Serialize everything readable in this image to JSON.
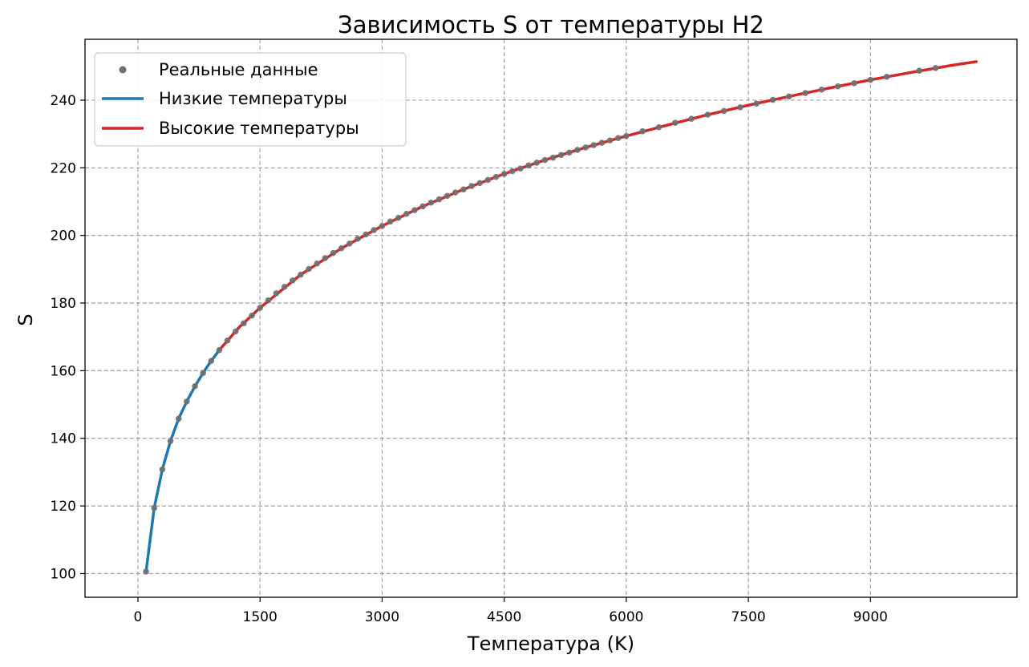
{
  "chart_data": {
    "type": "line",
    "title": "Зависимость S от температуры H2",
    "xlabel": "Температура (K)",
    "ylabel": "S",
    "xlim": [
      -650,
      10800
    ],
    "ylim": [
      93,
      258
    ],
    "xticks": [
      0,
      1500,
      3000,
      4500,
      6000,
      7500,
      9000
    ],
    "yticks": [
      100,
      120,
      140,
      160,
      180,
      200,
      220,
      240
    ],
    "grid": true,
    "legend_position": "upper left",
    "legend": [
      {
        "label": "Реальные данные",
        "kind": "marker",
        "color": "#707070"
      },
      {
        "label": "Низкие температуры",
        "kind": "line",
        "color": "#1f77b4"
      },
      {
        "label": "Высокие температуры",
        "kind": "line",
        "color": "#d62728"
      }
    ],
    "series": [
      {
        "name": "Реальные данные",
        "kind": "scatter",
        "color": "#707070",
        "x": [
          100,
          200,
          300,
          400,
          500,
          600,
          700,
          800,
          900,
          1000,
          1100,
          1200,
          1300,
          1400,
          1500,
          1600,
          1700,
          1800,
          1900,
          2000,
          2100,
          2200,
          2300,
          2400,
          2500,
          2600,
          2700,
          2800,
          2900,
          3000,
          3100,
          3200,
          3300,
          3400,
          3500,
          3600,
          3700,
          3800,
          3900,
          4000,
          4100,
          4200,
          4300,
          4400,
          4500,
          4600,
          4700,
          4800,
          4900,
          5000,
          5100,
          5200,
          5300,
          5400,
          5500,
          5600,
          5700,
          5800,
          5900,
          6000,
          6200,
          6400,
          6600,
          6800,
          7000,
          7200,
          7400,
          7600,
          7800,
          8000,
          8200,
          8400,
          8600,
          8800,
          9000,
          9200,
          9600,
          9800
        ],
        "y": [
          100.6,
          119.4,
          130.8,
          139.2,
          145.8,
          150.9,
          155.4,
          159.3,
          162.9,
          166.1,
          168.9,
          171.6,
          174.0,
          176.3,
          178.6,
          180.8,
          182.9,
          184.8,
          186.7,
          188.4,
          190.1,
          191.7,
          193.3,
          194.8,
          196.2,
          197.6,
          199.0,
          200.3,
          201.6,
          202.8,
          204.1,
          205.2,
          206.4,
          207.5,
          208.6,
          209.7,
          210.7,
          211.7,
          212.7,
          213.6,
          214.6,
          215.5,
          216.4,
          217.3,
          218.2,
          219.0,
          219.8,
          220.7,
          221.5,
          222.3,
          223.0,
          223.8,
          224.5,
          225.3,
          226.0,
          226.7,
          227.4,
          228.1,
          228.8,
          229.4,
          230.8,
          232.0,
          233.3,
          234.5,
          235.7,
          236.8,
          237.9,
          239.0,
          240.1,
          241.1,
          242.1,
          243.1,
          244.1,
          245.0,
          246.0,
          246.9,
          248.7,
          249.5
        ]
      },
      {
        "name": "Низкие температуры",
        "kind": "line",
        "color": "#1f77b4",
        "x": [
          100,
          200,
          300,
          400,
          500,
          600,
          700,
          800,
          900,
          1000
        ],
        "y": [
          100.6,
          119.4,
          130.8,
          139.2,
          145.8,
          150.9,
          155.4,
          159.3,
          162.9,
          166.1
        ]
      },
      {
        "name": "Высокие температуры",
        "kind": "line",
        "color": "#d62728",
        "x": [
          1000,
          1250,
          1500,
          2000,
          2500,
          3000,
          3500,
          4000,
          4500,
          5000,
          5500,
          6000,
          6500,
          7000,
          7500,
          8000,
          8500,
          9000,
          9500,
          10000,
          10300
        ],
        "y": [
          166.1,
          173.0,
          178.6,
          188.4,
          196.2,
          202.8,
          208.6,
          213.6,
          218.2,
          222.3,
          226.0,
          229.4,
          232.6,
          235.7,
          238.5,
          241.1,
          243.6,
          246.0,
          248.2,
          250.3,
          251.4
        ]
      }
    ]
  }
}
